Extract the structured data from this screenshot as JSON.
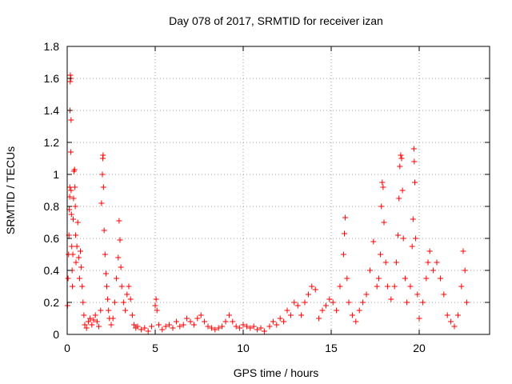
{
  "chart_data": {
    "type": "scatter",
    "title": "Day 078 of 2017, SRMTID for receiver izan",
    "xlabel": "GPS time / hours",
    "ylabel": "SRMTID / TECUs",
    "xlim": [
      0,
      24
    ],
    "ylim": [
      0,
      1.8
    ],
    "x_ticks": [
      0,
      5,
      10,
      15,
      20
    ],
    "y_ticks": [
      0,
      0.2,
      0.4,
      0.6,
      0.8,
      1,
      1.2,
      1.4,
      1.6,
      1.8
    ],
    "x_tick_labels": [
      "0",
      "5",
      "10",
      "15",
      "20"
    ],
    "y_tick_labels": [
      "0",
      "0.2",
      "0.4",
      "0.6",
      "0.8",
      "1",
      "1.2",
      "1.4",
      "1.6",
      "1.8"
    ],
    "grid": true,
    "marker": "+",
    "color": "#ff0000",
    "series": [
      {
        "name": "SRMTID",
        "points": [
          [
            0.02,
            0.18
          ],
          [
            0.05,
            0.35
          ],
          [
            0.08,
            0.5
          ],
          [
            0.1,
            0.62
          ],
          [
            0.12,
            0.78
          ],
          [
            0.14,
            0.86
          ],
          [
            0.15,
            0.92
          ],
          [
            0.16,
            1.4
          ],
          [
            0.17,
            1.58
          ],
          [
            0.18,
            1.62
          ],
          [
            0.2,
            1.6
          ],
          [
            0.22,
            1.34
          ],
          [
            0.2,
            1.14
          ],
          [
            0.22,
            0.9
          ],
          [
            0.24,
            0.75
          ],
          [
            0.26,
            0.55
          ],
          [
            0.28,
            0.4
          ],
          [
            0.3,
            0.3
          ],
          [
            0.32,
            0.5
          ],
          [
            0.34,
            0.72
          ],
          [
            0.36,
            0.85
          ],
          [
            0.38,
            1.02
          ],
          [
            0.42,
            1.03
          ],
          [
            0.44,
            0.92
          ],
          [
            0.46,
            0.8
          ],
          [
            0.48,
            0.62
          ],
          [
            0.5,
            0.45
          ],
          [
            0.55,
            0.55
          ],
          [
            0.6,
            0.7
          ],
          [
            0.65,
            0.48
          ],
          [
            0.7,
            0.35
          ],
          [
            0.75,
            0.52
          ],
          [
            0.8,
            0.42
          ],
          [
            0.85,
            0.3
          ],
          [
            0.9,
            0.2
          ],
          [
            0.95,
            0.12
          ],
          [
            1.0,
            0.06
          ],
          [
            1.1,
            0.04
          ],
          [
            1.2,
            0.08
          ],
          [
            1.3,
            0.1
          ],
          [
            1.4,
            0.06
          ],
          [
            1.5,
            0.09
          ],
          [
            1.6,
            0.12
          ],
          [
            1.7,
            0.08
          ],
          [
            1.8,
            0.05
          ],
          [
            1.9,
            0.15
          ],
          [
            1.95,
            0.82
          ],
          [
            2.0,
            1.0
          ],
          [
            2.02,
            1.1
          ],
          [
            2.04,
            1.12
          ],
          [
            2.06,
            0.92
          ],
          [
            2.1,
            0.65
          ],
          [
            2.15,
            0.5
          ],
          [
            2.2,
            0.38
          ],
          [
            2.25,
            0.3
          ],
          [
            2.3,
            0.22
          ],
          [
            2.35,
            0.15
          ],
          [
            2.4,
            0.1
          ],
          [
            2.5,
            0.06
          ],
          [
            2.6,
            0.1
          ],
          [
            2.7,
            0.2
          ],
          [
            2.8,
            0.35
          ],
          [
            2.9,
            0.48
          ],
          [
            2.95,
            0.71
          ],
          [
            3.0,
            0.59
          ],
          [
            3.05,
            0.42
          ],
          [
            3.1,
            0.3
          ],
          [
            3.2,
            0.2
          ],
          [
            3.3,
            0.15
          ],
          [
            3.4,
            0.25
          ],
          [
            3.5,
            0.3
          ],
          [
            3.6,
            0.22
          ],
          [
            3.7,
            0.12
          ],
          [
            3.8,
            0.06
          ],
          [
            3.9,
            0.04
          ],
          [
            4.0,
            0.05
          ],
          [
            4.2,
            0.03
          ],
          [
            4.4,
            0.04
          ],
          [
            4.6,
            0.02
          ],
          [
            4.8,
            0.05
          ],
          [
            5.0,
            0.18
          ],
          [
            5.05,
            0.22
          ],
          [
            5.1,
            0.15
          ],
          [
            5.2,
            0.06
          ],
          [
            5.4,
            0.03
          ],
          [
            5.6,
            0.05
          ],
          [
            5.8,
            0.06
          ],
          [
            6.0,
            0.04
          ],
          [
            6.2,
            0.08
          ],
          [
            6.4,
            0.05
          ],
          [
            6.6,
            0.06
          ],
          [
            6.8,
            0.1
          ],
          [
            7.0,
            0.08
          ],
          [
            7.2,
            0.06
          ],
          [
            7.4,
            0.1
          ],
          [
            7.6,
            0.12
          ],
          [
            7.8,
            0.08
          ],
          [
            8.0,
            0.05
          ],
          [
            8.2,
            0.04
          ],
          [
            8.4,
            0.03
          ],
          [
            8.6,
            0.04
          ],
          [
            8.8,
            0.05
          ],
          [
            9.0,
            0.08
          ],
          [
            9.2,
            0.12
          ],
          [
            9.4,
            0.08
          ],
          [
            9.6,
            0.05
          ],
          [
            9.8,
            0.04
          ],
          [
            10.0,
            0.06
          ],
          [
            10.2,
            0.05
          ],
          [
            10.4,
            0.04
          ],
          [
            10.6,
            0.05
          ],
          [
            10.8,
            0.03
          ],
          [
            11.0,
            0.04
          ],
          [
            11.2,
            0.02
          ],
          [
            11.5,
            0.05
          ],
          [
            11.7,
            0.08
          ],
          [
            11.9,
            0.06
          ],
          [
            12.1,
            0.1
          ],
          [
            12.3,
            0.08
          ],
          [
            12.5,
            0.15
          ],
          [
            12.7,
            0.12
          ],
          [
            12.9,
            0.2
          ],
          [
            13.1,
            0.18
          ],
          [
            13.3,
            0.12
          ],
          [
            13.5,
            0.2
          ],
          [
            13.7,
            0.25
          ],
          [
            13.9,
            0.3
          ],
          [
            14.1,
            0.28
          ],
          [
            14.3,
            0.1
          ],
          [
            14.5,
            0.15
          ],
          [
            14.7,
            0.18
          ],
          [
            14.9,
            0.22
          ],
          [
            15.1,
            0.2
          ],
          [
            15.3,
            0.15
          ],
          [
            15.5,
            0.3
          ],
          [
            15.7,
            0.5
          ],
          [
            15.75,
            0.63
          ],
          [
            15.8,
            0.73
          ],
          [
            15.9,
            0.35
          ],
          [
            16.0,
            0.2
          ],
          [
            16.2,
            0.12
          ],
          [
            16.4,
            0.08
          ],
          [
            16.6,
            0.15
          ],
          [
            16.8,
            0.2
          ],
          [
            17.0,
            0.25
          ],
          [
            17.2,
            0.4
          ],
          [
            17.4,
            0.58
          ],
          [
            17.6,
            0.3
          ],
          [
            17.7,
            0.35
          ],
          [
            17.8,
            0.5
          ],
          [
            17.85,
            0.8
          ],
          [
            17.9,
            0.95
          ],
          [
            17.95,
            0.92
          ],
          [
            18.0,
            0.7
          ],
          [
            18.1,
            0.45
          ],
          [
            18.2,
            0.3
          ],
          [
            18.4,
            0.22
          ],
          [
            18.6,
            0.3
          ],
          [
            18.7,
            0.45
          ],
          [
            18.8,
            0.62
          ],
          [
            18.85,
            0.85
          ],
          [
            18.9,
            1.05
          ],
          [
            18.95,
            1.12
          ],
          [
            19.0,
            1.1
          ],
          [
            19.05,
            0.9
          ],
          [
            19.1,
            0.6
          ],
          [
            19.2,
            0.35
          ],
          [
            19.3,
            0.2
          ],
          [
            19.5,
            0.3
          ],
          [
            19.6,
            0.55
          ],
          [
            19.65,
            0.72
          ],
          [
            19.7,
            1.16
          ],
          [
            19.72,
            1.08
          ],
          [
            19.75,
            0.95
          ],
          [
            19.8,
            0.6
          ],
          [
            19.9,
            0.25
          ],
          [
            20.0,
            0.1
          ],
          [
            20.2,
            0.2
          ],
          [
            20.4,
            0.35
          ],
          [
            20.5,
            0.45
          ],
          [
            20.6,
            0.52
          ],
          [
            20.8,
            0.4
          ],
          [
            21.0,
            0.45
          ],
          [
            21.2,
            0.35
          ],
          [
            21.4,
            0.25
          ],
          [
            21.6,
            0.12
          ],
          [
            21.8,
            0.08
          ],
          [
            22.0,
            0.05
          ],
          [
            22.2,
            0.12
          ],
          [
            22.4,
            0.3
          ],
          [
            22.5,
            0.52
          ],
          [
            22.6,
            0.4
          ],
          [
            22.7,
            0.2
          ]
        ]
      }
    ]
  }
}
